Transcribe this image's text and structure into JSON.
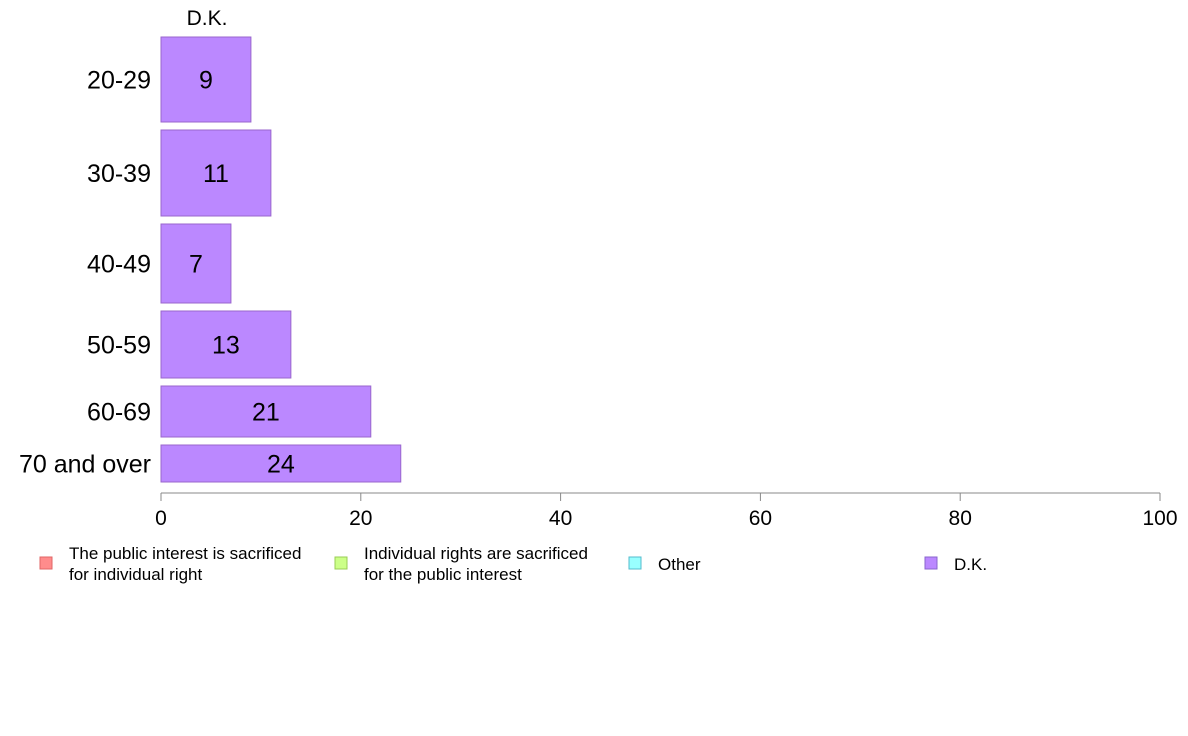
{
  "chart_data": {
    "type": "bar",
    "orientation": "horizontal",
    "column_title": "D.K.",
    "categories": [
      "20-29",
      "30-39",
      "40-49",
      "50-59",
      "60-69",
      "70 and over"
    ],
    "series": [
      {
        "name": "D.K.",
        "values": [
          9,
          11,
          7,
          13,
          21,
          24
        ]
      }
    ],
    "xlim": [
      0,
      100
    ],
    "xticks": [
      0,
      20,
      40,
      60,
      80,
      100
    ],
    "xlabel": "",
    "ylabel": "",
    "grid": false,
    "legend_position": "bottom",
    "legend": [
      {
        "lines": [
          "The public interest is sacrificed",
          "for individual right"
        ],
        "color": "#ff8c8c",
        "border": "#e06666"
      },
      {
        "lines": [
          "Individual rights are sacrificed",
          "for the public interest"
        ],
        "color": "#ccff88",
        "border": "#99cc55"
      },
      {
        "lines": [
          "Other"
        ],
        "color": "#99ffff",
        "border": "#55bbcc"
      },
      {
        "lines": [
          "D.K."
        ],
        "color": "#bb88ff",
        "border": "#8866cc"
      }
    ],
    "bar_color": "#bb88ff",
    "bar_border": "#9966cc"
  }
}
